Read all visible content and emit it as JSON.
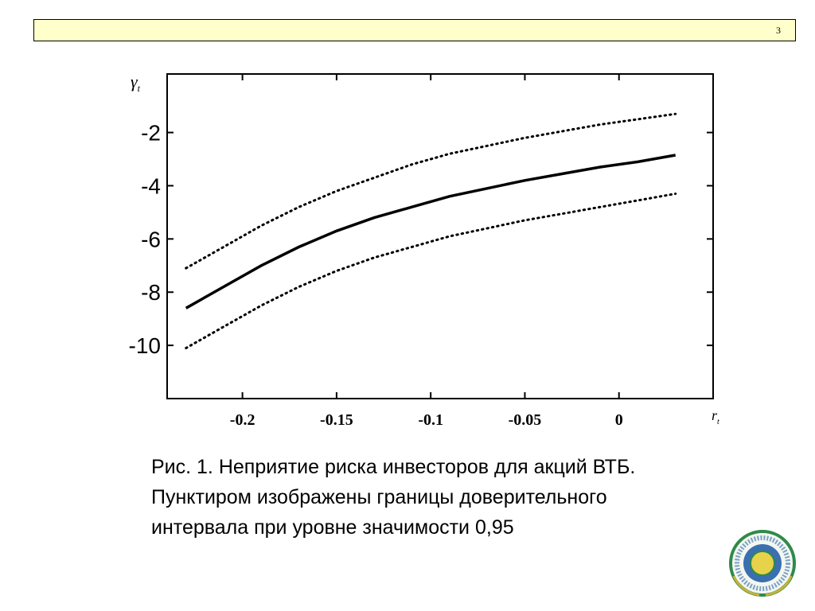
{
  "header": {
    "page_number": "3"
  },
  "chart_data": {
    "type": "line",
    "title": "",
    "xlabel": "r",
    "xlabel_sub": "t",
    "ylabel": "γ",
    "ylabel_sub": "t",
    "xlim": [
      -0.24,
      0.05
    ],
    "ylim": [
      -12,
      0.2
    ],
    "x_ticks": [
      -0.2,
      -0.15,
      -0.1,
      -0.05,
      0
    ],
    "x_tick_labels": [
      "-0.2",
      "-0.15",
      "-0.1",
      "-0.05",
      "0"
    ],
    "y_ticks": [
      -2,
      -4,
      -6,
      -8,
      -10
    ],
    "y_tick_labels": [
      "-2",
      "-4",
      "-6",
      "-8",
      "-10"
    ],
    "grid": false,
    "series": [
      {
        "style": "solid",
        "x": [
          -0.23,
          -0.21,
          -0.19,
          -0.17,
          -0.15,
          -0.13,
          -0.11,
          -0.09,
          -0.07,
          -0.05,
          -0.03,
          -0.01,
          0.01,
          0.03
        ],
        "y": [
          -8.6,
          -7.8,
          -7.0,
          -6.3,
          -5.7,
          -5.2,
          -4.8,
          -4.4,
          -4.1,
          -3.8,
          -3.55,
          -3.3,
          -3.1,
          -2.85
        ]
      },
      {
        "style": "dotted",
        "x": [
          -0.23,
          -0.21,
          -0.19,
          -0.17,
          -0.15,
          -0.13,
          -0.11,
          -0.09,
          -0.07,
          -0.05,
          -0.03,
          -0.01,
          0.01,
          0.03
        ],
        "y": [
          -7.1,
          -6.3,
          -5.5,
          -4.8,
          -4.2,
          -3.7,
          -3.2,
          -2.8,
          -2.5,
          -2.2,
          -1.95,
          -1.7,
          -1.5,
          -1.3
        ]
      },
      {
        "style": "dotted",
        "x": [
          -0.23,
          -0.21,
          -0.19,
          -0.17,
          -0.15,
          -0.13,
          -0.11,
          -0.09,
          -0.07,
          -0.05,
          -0.03,
          -0.01,
          0.01,
          0.03
        ],
        "y": [
          -10.1,
          -9.3,
          -8.5,
          -7.8,
          -7.2,
          -6.7,
          -6.3,
          -5.9,
          -5.6,
          -5.3,
          -5.05,
          -4.8,
          -4.55,
          -4.3
        ]
      }
    ]
  },
  "caption": {
    "line1": "Рис. 1. Неприятие риска инвесторов для акций ВТБ.",
    "line2": "Пунктиром изображены границы доверительного",
    "line3": "интервала при уровне значимости 0,95"
  },
  "logo": {
    "colors": {
      "ring": "#2f8a4a",
      "center": "#e8d24a",
      "inner": "#3a6fb0"
    }
  }
}
